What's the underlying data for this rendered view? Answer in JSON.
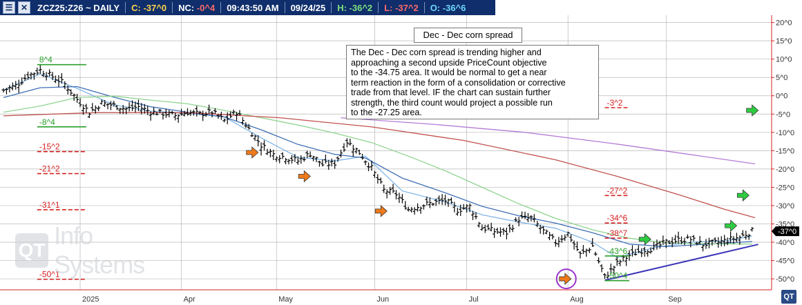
{
  "header": {
    "symbol": "ZCZ25:Z26 ~ DAILY",
    "close_label": "C:",
    "close_value": "-37^0",
    "nc_label": "NC:",
    "nc_value": "-0^4",
    "time": "09:43:50 AM",
    "date": "09/24/25",
    "high_label": "H:",
    "high_value": "-36^2",
    "low_label": "L:",
    "low_value": "-37^2",
    "open_label": "O:",
    "open_value": "-36^6"
  },
  "colors": {
    "header_bg": "#0f2e6b",
    "bars": "#000000",
    "ma_fast": "#7fb5e6",
    "ma_mid": "#3f6fb6",
    "ma_green": "#8fd48f",
    "ma_red": "#c0504d",
    "ma_purple": "#b37bd6",
    "trendline": "#3a33b8",
    "count_red": "#d62020",
    "count_green": "#2aa02a",
    "arrow_orange": "#f07a1a",
    "arrow_green": "#2ecc40",
    "circle": "#9933cc",
    "grid": "#b8b8b8"
  },
  "chart_title": "Dec - Dec corn spread",
  "commentary": "The Dec - Dec corn spread is trending higher and\napproaching a second upside PriceCount objective\nto the -34.75 area.  It would be normal to get a near\nterm reaction in the form of a consolidation or corrective\ntrade from that level.  IF the chart can sustain further\nstrength, the third count would project a possible run\nto the -27.25 area.",
  "watermark": {
    "logo": "QT",
    "text": "Info Systems"
  },
  "corner_logo": "QT",
  "chart_data": {
    "type": "bar",
    "style": "ohlc",
    "ylim": [
      -53,
      22
    ],
    "y_ticks": [
      20,
      15,
      10,
      5,
      0,
      -5,
      -10,
      -15,
      -20,
      -25,
      -30,
      -35,
      -40,
      -45,
      -50
    ],
    "y_tick_labels": [
      "20^0",
      "15^0",
      "10^0",
      "5^0",
      "0^0",
      "-5^0",
      "-10^0",
      "-15^0",
      "-20^0",
      "-25^0",
      "-30^0",
      "-35^0",
      "-40^0",
      "-45^0",
      "-50^0"
    ],
    "x_labels": [
      {
        "label": "2025",
        "t": 25
      },
      {
        "label": "Apr",
        "t": 58
      },
      {
        "label": "May",
        "t": 89
      },
      {
        "label": "Jun",
        "t": 121
      },
      {
        "label": "Jul",
        "t": 151
      },
      {
        "label": "Aug",
        "t": 184
      },
      {
        "label": "Sep",
        "t": 216
      }
    ],
    "t_range": [
      0,
      247
    ],
    "price_pts": [
      [
        0,
        1.5
      ],
      [
        4,
        2.8
      ],
      [
        8,
        5.5
      ],
      [
        12,
        7.0
      ],
      [
        16,
        5.2
      ],
      [
        20,
        3.2
      ],
      [
        24,
        -1.0
      ],
      [
        28,
        -4.5
      ],
      [
        32,
        -2.0
      ],
      [
        36,
        -2.6
      ],
      [
        40,
        -3.6
      ],
      [
        44,
        -3.0
      ],
      [
        48,
        -4.4
      ],
      [
        52,
        -4.8
      ],
      [
        56,
        -5.4
      ],
      [
        60,
        -4.5
      ],
      [
        64,
        -5.0
      ],
      [
        68,
        -4.4
      ],
      [
        72,
        -6.8
      ],
      [
        76,
        -4.4
      ],
      [
        80,
        -9.0
      ],
      [
        84,
        -13.5
      ],
      [
        88,
        -16.0
      ],
      [
        92,
        -16.8
      ],
      [
        96,
        -17.8
      ],
      [
        100,
        -15.8
      ],
      [
        104,
        -18.8
      ],
      [
        108,
        -18.4
      ],
      [
        112,
        -12.5
      ],
      [
        116,
        -15.5
      ],
      [
        120,
        -19.8
      ],
      [
        124,
        -25.8
      ],
      [
        128,
        -26.8
      ],
      [
        132,
        -31.0
      ],
      [
        136,
        -30.0
      ],
      [
        140,
        -29.2
      ],
      [
        144,
        -28.6
      ],
      [
        148,
        -31.2
      ],
      [
        152,
        -30.2
      ],
      [
        156,
        -36.0
      ],
      [
        160,
        -37.0
      ],
      [
        164,
        -37.4
      ],
      [
        168,
        -33.6
      ],
      [
        172,
        -33.4
      ],
      [
        176,
        -37.0
      ],
      [
        180,
        -40.0
      ],
      [
        184,
        -37.6
      ],
      [
        188,
        -43.4
      ],
      [
        192,
        -41.0
      ],
      [
        196,
        -49.5
      ],
      [
        200,
        -45.8
      ],
      [
        204,
        -43.6
      ],
      [
        208,
        -42.2
      ],
      [
        212,
        -41.6
      ],
      [
        216,
        -40.0
      ],
      [
        220,
        -39.4
      ],
      [
        224,
        -39.2
      ],
      [
        228,
        -40.6
      ],
      [
        232,
        -40.2
      ],
      [
        236,
        -39.4
      ],
      [
        240,
        -38.6
      ],
      [
        244,
        -37.0
      ]
    ],
    "moving_averages": [
      {
        "color": "ma_fast",
        "pts": [
          [
            0,
            1.5
          ],
          [
            12,
            6.0
          ],
          [
            24,
            2.0
          ],
          [
            36,
            -2.5
          ],
          [
            48,
            -4.2
          ],
          [
            60,
            -4.8
          ],
          [
            72,
            -5.8
          ],
          [
            84,
            -11.5
          ],
          [
            96,
            -16.8
          ],
          [
            108,
            -17.8
          ],
          [
            118,
            -16.5
          ],
          [
            130,
            -26.0
          ],
          [
            144,
            -29.0
          ],
          [
            156,
            -32.5
          ],
          [
            168,
            -34.5
          ],
          [
            180,
            -36.2
          ],
          [
            192,
            -40.0
          ],
          [
            200,
            -44.2
          ],
          [
            212,
            -41.5
          ],
          [
            224,
            -40.0
          ],
          [
            236,
            -39.6
          ],
          [
            244,
            -38.3
          ]
        ]
      },
      {
        "color": "ma_mid",
        "pts": [
          [
            0,
            -0.5
          ],
          [
            12,
            2.2
          ],
          [
            24,
            2.5
          ],
          [
            36,
            -0.4
          ],
          [
            48,
            -3.0
          ],
          [
            60,
            -4.5
          ],
          [
            72,
            -5.8
          ],
          [
            84,
            -9.3
          ],
          [
            96,
            -13.3
          ],
          [
            108,
            -16.0
          ],
          [
            118,
            -17.0
          ],
          [
            130,
            -22.5
          ],
          [
            144,
            -26.5
          ],
          [
            156,
            -30.2
          ],
          [
            168,
            -32.8
          ],
          [
            180,
            -34.8
          ],
          [
            192,
            -37.4
          ],
          [
            204,
            -40.5
          ],
          [
            216,
            -41.2
          ],
          [
            228,
            -40.6
          ],
          [
            244,
            -39.8
          ]
        ]
      },
      {
        "color": "ma_green",
        "pts": [
          [
            0,
            -4.5
          ],
          [
            12,
            -2.8
          ],
          [
            24,
            -0.5
          ],
          [
            36,
            -0.1
          ],
          [
            48,
            -1.2
          ],
          [
            60,
            -2.2
          ],
          [
            72,
            -4.0
          ],
          [
            84,
            -6.0
          ],
          [
            96,
            -8.0
          ],
          [
            108,
            -10.2
          ],
          [
            120,
            -12.8
          ],
          [
            132,
            -16.5
          ],
          [
            144,
            -20.5
          ],
          [
            156,
            -25.0
          ],
          [
            168,
            -29.5
          ],
          [
            180,
            -33.5
          ],
          [
            192,
            -36.6
          ],
          [
            204,
            -38.9
          ],
          [
            216,
            -40.2
          ],
          [
            228,
            -40.4
          ],
          [
            244,
            -40.5
          ]
        ]
      },
      {
        "color": "ma_red",
        "pts": [
          [
            0,
            -5.5
          ],
          [
            30,
            -4.6
          ],
          [
            60,
            -4.6
          ],
          [
            90,
            -6.0
          ],
          [
            120,
            -8.5
          ],
          [
            150,
            -12.2
          ],
          [
            180,
            -17.5
          ],
          [
            200,
            -22.0
          ],
          [
            220,
            -27.0
          ],
          [
            235,
            -31.0
          ],
          [
            245,
            -33.3
          ]
        ]
      },
      {
        "color": "ma_purple",
        "pts": [
          [
            110,
            -6.0
          ],
          [
            140,
            -7.8
          ],
          [
            170,
            -10.0
          ],
          [
            200,
            -13.2
          ],
          [
            225,
            -16.2
          ],
          [
            245,
            -18.6
          ]
        ]
      }
    ],
    "trendline": [
      [
        196,
        -50.4
      ],
      [
        246,
        -40.6
      ]
    ],
    "price_counts": [
      {
        "label": "8^4",
        "value": 8.5,
        "t0": 11,
        "t1": 27,
        "color": "count_green",
        "solid": true
      },
      {
        "label": "-8^4",
        "value": -8.5,
        "t0": 11,
        "t1": 27,
        "color": "count_green",
        "solid": true
      },
      {
        "label": "-15^2",
        "value": -15.25,
        "t0": 11,
        "t1": 27,
        "color": "count_red",
        "solid": false
      },
      {
        "label": "-21^2",
        "value": -21.25,
        "t0": 11,
        "t1": 27,
        "color": "count_red",
        "solid": false
      },
      {
        "label": "-31^1",
        "value": -31.125,
        "t0": 11,
        "t1": 27,
        "color": "count_red",
        "solid": false
      },
      {
        "label": "-50^1",
        "value": -50.125,
        "t0": 11,
        "t1": 27,
        "color": "count_red",
        "solid": false
      },
      {
        "label": "-3^2",
        "value": -3.25,
        "t0": 196,
        "t1": 204,
        "color": "count_red",
        "solid": false
      },
      {
        "label": "-27^2",
        "value": -27.25,
        "t0": 196,
        "t1": 204,
        "color": "count_red",
        "solid": false
      },
      {
        "label": "-34^6",
        "value": -34.75,
        "t0": 196,
        "t1": 204,
        "color": "count_red",
        "solid": false
      },
      {
        "label": "-38^7",
        "value": -38.875,
        "t0": 196,
        "t1": 204,
        "color": "count_red",
        "solid": false
      },
      {
        "label": "-43^6",
        "value": -43.75,
        "t0": 196,
        "t1": 204,
        "color": "count_green",
        "solid": true
      },
      {
        "label": "-50^4",
        "value": -50.5,
        "t0": 196,
        "t1": 204,
        "color": "count_green",
        "solid": true
      }
    ],
    "arrows": [
      {
        "t": 81,
        "value": -15.5,
        "color": "arrow_orange"
      },
      {
        "t": 98,
        "value": -22.0,
        "color": "arrow_orange"
      },
      {
        "t": 123,
        "value": -31.5,
        "color": "arrow_orange"
      },
      {
        "t": 183,
        "value": -50.0,
        "color": "arrow_orange",
        "circled": true
      },
      {
        "t": 209,
        "value": -39.2,
        "color": "arrow_green"
      },
      {
        "t": 237,
        "value": -35.5,
        "color": "arrow_green"
      },
      {
        "t": 241,
        "value": -27.2,
        "color": "arrow_green"
      },
      {
        "t": 244,
        "value": -4.0,
        "color": "arrow_green"
      }
    ],
    "last_price": {
      "label": "-37^0",
      "value": -37.0
    }
  }
}
